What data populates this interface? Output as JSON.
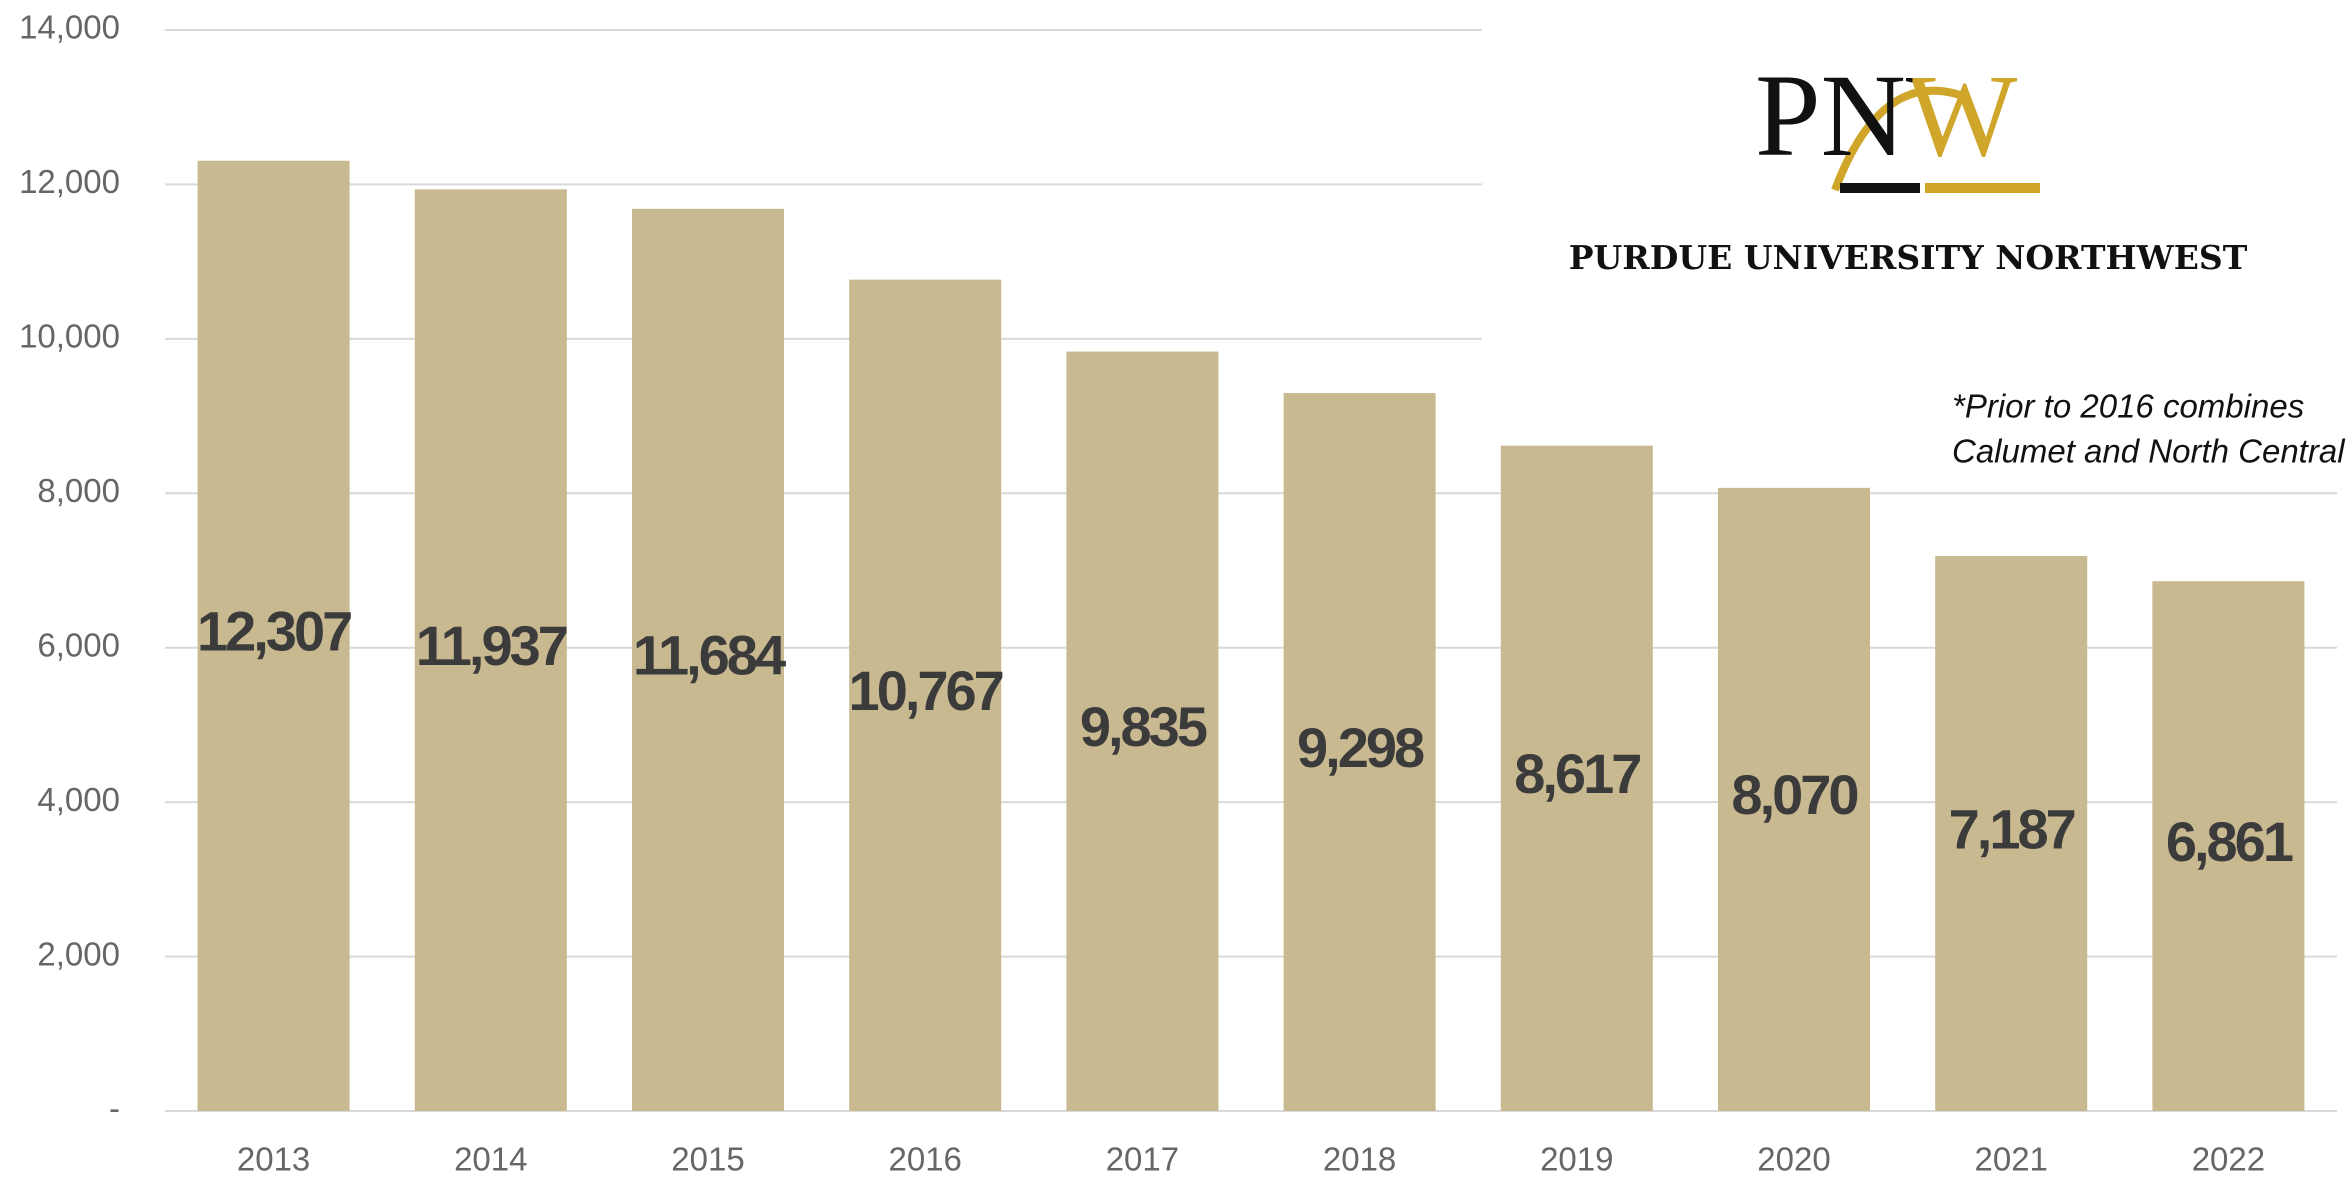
{
  "chart_data": {
    "type": "bar",
    "categories": [
      "2013",
      "2014",
      "2015",
      "2016",
      "2017",
      "2018",
      "2019",
      "2020",
      "2021",
      "2022"
    ],
    "values": [
      12307,
      11937,
      11684,
      10767,
      9835,
      9298,
      8617,
      8070,
      7187,
      6861
    ],
    "value_labels": [
      "12,307",
      "11,937",
      "11,684",
      "10,767",
      "9,835",
      "9,298",
      "8,617",
      "8,070",
      "7,187",
      "6,861"
    ],
    "color": "#c8b991",
    "ylim": [
      0,
      14000
    ],
    "yticks": [
      {
        "value": 0,
        "label": "-"
      },
      {
        "value": 2000,
        "label": "2,000"
      },
      {
        "value": 4000,
        "label": "4,000"
      },
      {
        "value": 6000,
        "label": "6,000"
      },
      {
        "value": 8000,
        "label": "8,000"
      },
      {
        "value": 10000,
        "label": "10,000"
      },
      {
        "value": 12000,
        "label": "12,000"
      },
      {
        "value": 14000,
        "label": "14,000"
      }
    ],
    "grid": true,
    "logo": "PNW",
    "institution": "PURDUE UNIVERSITY NORTHWEST",
    "annotation": [
      "*Prior to 2016 combines",
      "Calumet and North Central"
    ]
  }
}
